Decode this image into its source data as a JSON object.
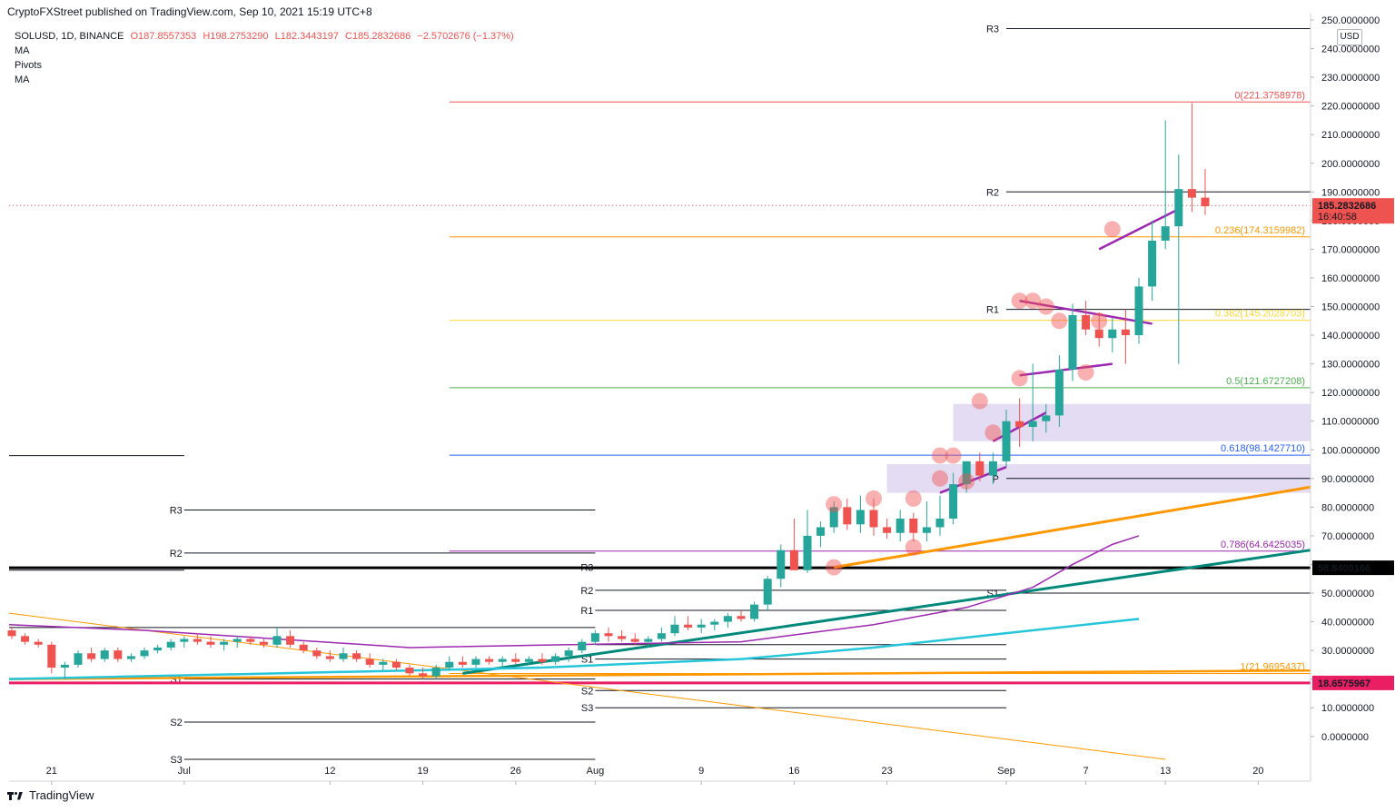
{
  "header": {
    "published": "CryptoFXStreet published on TradingView.com, Sep 10, 2021 15:19 UTC+8"
  },
  "legend": {
    "symbol": "SOLUSD, 1D, BINANCE",
    "open": "O187.8557353",
    "high": "H198.2753290",
    "low": "L182.3443197",
    "close": "C185.2832686",
    "change": "−2.5702676 (−1.37%)",
    "indicators": [
      "MA",
      "Pivots",
      "MA"
    ]
  },
  "currency": "USD",
  "footer": {
    "brand": "TradingView"
  },
  "colors": {
    "up": "#26a69a",
    "down": "#ef5350",
    "orange": "#ff9800",
    "teal": "#00897b",
    "cyan": "#26c6da",
    "purple": "#9c27b0",
    "magenta": "#e91e63",
    "zone": "#d1c4e9"
  },
  "chart_data": {
    "type": "candlestick",
    "symbol": "SOLUSD",
    "interval": "1D",
    "ylim": [
      -8,
      250
    ],
    "y_ticks": [
      0,
      10,
      20,
      30,
      40,
      50,
      60,
      70,
      80,
      90,
      100,
      110,
      120,
      130,
      140,
      150,
      160,
      170,
      180,
      190,
      200,
      210,
      220,
      230,
      240,
      250
    ],
    "y_tick_labels": [
      "0.0000000",
      "10.0000000",
      "20.0000000",
      "30.0000000",
      "40.0000000",
      "50.0000000",
      "60.0000000",
      "70.0000000",
      "80.0000000",
      "90.0000000",
      "100.0000000",
      "110.0000000",
      "120.0000000",
      "130.0000000",
      "140.0000000",
      "150.0000000",
      "160.0000000",
      "170.0000000",
      "180.0000000",
      "190.0000000",
      "200.0000000",
      "210.0000000",
      "220.0000000",
      "230.0000000",
      "240.0000000",
      "250.0000000"
    ],
    "x_labels": [
      {
        "label": "21",
        "day": 3
      },
      {
        "label": "Jul",
        "day": 13
      },
      {
        "label": "12",
        "day": 24
      },
      {
        "label": "19",
        "day": 31
      },
      {
        "label": "26",
        "day": 38
      },
      {
        "label": "Aug",
        "day": 44
      },
      {
        "label": "9",
        "day": 52
      },
      {
        "label": "16",
        "day": 59
      },
      {
        "label": "23",
        "day": 66
      },
      {
        "label": "Sep",
        "day": 75
      },
      {
        "label": "7",
        "day": 81
      },
      {
        "label": "13",
        "day": 87
      },
      {
        "label": "20",
        "day": 94
      }
    ],
    "price_tags": [
      {
        "value": 185.2832686,
        "label": "185.2832686",
        "sub": "16:40:58",
        "color": "#ef5350"
      },
      {
        "value": 58.8400166,
        "label": "58.8400166",
        "color": "#000000"
      },
      {
        "value": 18.6575967,
        "label": "18.6575967",
        "color": "#e91e63"
      }
    ],
    "candles": [
      [
        37,
        38,
        34,
        35
      ],
      [
        35,
        36,
        32,
        33
      ],
      [
        33,
        34,
        31,
        32
      ],
      [
        32,
        33,
        22,
        24
      ],
      [
        24,
        26,
        20,
        25
      ],
      [
        25,
        30,
        24,
        29
      ],
      [
        29,
        31,
        26,
        27
      ],
      [
        27,
        31,
        26,
        30
      ],
      [
        30,
        31,
        26,
        27
      ],
      [
        27,
        29,
        26,
        28
      ],
      [
        28,
        31,
        27,
        30
      ],
      [
        30,
        32,
        29,
        31
      ],
      [
        31,
        34,
        30,
        33
      ],
      [
        33,
        35,
        31,
        34
      ],
      [
        34,
        36,
        32,
        33
      ],
      [
        33,
        35,
        31,
        32
      ],
      [
        32,
        34,
        30,
        33
      ],
      [
        33,
        35,
        31,
        34
      ],
      [
        34,
        35,
        32,
        33
      ],
      [
        33,
        34,
        31,
        32
      ],
      [
        32,
        38,
        31,
        35
      ],
      [
        35,
        37,
        31,
        32
      ],
      [
        32,
        33,
        29,
        30
      ],
      [
        30,
        31,
        27,
        28
      ],
      [
        28,
        30,
        26,
        27
      ],
      [
        27,
        31,
        26,
        29
      ],
      [
        29,
        30,
        26,
        27
      ],
      [
        27,
        29,
        24,
        25
      ],
      [
        25,
        27,
        23,
        26
      ],
      [
        26,
        27,
        23,
        24
      ],
      [
        24,
        25,
        21,
        22
      ],
      [
        22,
        24,
        20,
        21
      ],
      [
        21,
        25,
        20,
        24
      ],
      [
        24,
        28,
        23,
        26
      ],
      [
        26,
        28,
        24,
        25
      ],
      [
        25,
        28,
        24,
        27
      ],
      [
        27,
        28,
        25,
        26
      ],
      [
        26,
        28,
        24,
        27
      ],
      [
        27,
        29,
        25,
        26
      ],
      [
        26,
        28,
        25,
        27
      ],
      [
        27,
        29,
        25,
        26
      ],
      [
        26,
        29,
        25,
        28
      ],
      [
        28,
        31,
        26,
        30
      ],
      [
        30,
        34,
        29,
        33
      ],
      [
        33,
        37,
        32,
        36
      ],
      [
        36,
        38,
        33,
        35
      ],
      [
        35,
        37,
        33,
        34
      ],
      [
        34,
        36,
        32,
        33
      ],
      [
        33,
        35,
        31,
        34
      ],
      [
        34,
        38,
        33,
        36
      ],
      [
        36,
        42,
        35,
        39
      ],
      [
        39,
        42,
        37,
        38
      ],
      [
        38,
        41,
        36,
        39
      ],
      [
        39,
        41,
        37,
        40
      ],
      [
        40,
        43,
        38,
        42
      ],
      [
        42,
        44,
        40,
        41
      ],
      [
        41,
        47,
        40,
        46
      ],
      [
        46,
        56,
        44,
        55
      ],
      [
        55,
        67,
        52,
        65
      ],
      [
        65,
        76,
        60,
        58
      ],
      [
        58,
        79,
        57,
        70
      ],
      [
        70,
        75,
        66,
        73
      ],
      [
        73,
        82,
        71,
        80
      ],
      [
        80,
        83,
        72,
        74
      ],
      [
        74,
        84,
        71,
        79
      ],
      [
        79,
        83,
        70,
        73
      ],
      [
        73,
        76,
        69,
        71
      ],
      [
        71,
        79,
        68,
        76
      ],
      [
        76,
        78,
        68,
        71
      ],
      [
        71,
        82,
        68,
        73
      ],
      [
        73,
        84,
        70,
        76
      ],
      [
        76,
        92,
        74,
        88
      ],
      [
        88,
        96,
        85,
        96
      ],
      [
        96,
        99,
        89,
        91
      ],
      [
        91,
        99,
        88,
        96
      ],
      [
        96,
        114,
        94,
        110
      ],
      [
        110,
        118,
        101,
        108
      ],
      [
        108,
        130,
        103,
        110
      ],
      [
        110,
        116,
        106,
        112
      ],
      [
        112,
        133,
        108,
        128
      ],
      [
        128,
        151,
        124,
        147
      ],
      [
        147,
        152,
        140,
        142
      ],
      [
        142,
        148,
        136,
        139
      ],
      [
        139,
        146,
        134,
        142
      ],
      [
        142,
        149,
        130,
        140
      ],
      [
        140,
        160,
        137,
        157
      ],
      [
        157,
        180,
        152,
        173
      ],
      [
        173,
        215,
        170,
        178
      ],
      [
        178,
        203,
        130,
        191
      ],
      [
        191,
        221,
        183,
        188
      ],
      [
        188,
        198,
        182,
        185
      ]
    ],
    "pivot_levels_right": [
      {
        "label": "R3",
        "value": 247
      },
      {
        "label": "R2",
        "value": 190
      },
      {
        "label": "R1",
        "value": 149
      },
      {
        "label": "P",
        "value": 90
      },
      {
        "label": "S1",
        "value": 50
      }
    ],
    "pivot_levels_mid": [
      {
        "label": "R3",
        "value": 59
      },
      {
        "label": "R2",
        "value": 51
      },
      {
        "label": "R1",
        "value": 44
      },
      {
        "label": "S1",
        "value": 27
      },
      {
        "label": "S2",
        "value": 16
      },
      {
        "label": "S3",
        "value": 10
      }
    ],
    "pivot_levels_left": [
      {
        "label": "R3",
        "value": 79
      },
      {
        "label": "R2",
        "value": 64
      },
      {
        "label": "S1",
        "value": 20
      },
      {
        "label": "S2",
        "value": 5
      },
      {
        "label": "S3",
        "value": -8
      }
    ],
    "fib_levels": [
      {
        "label": "0(221.3758978)",
        "value": 221.3758978,
        "color": "#ef5350"
      },
      {
        "label": "0.236(174.3159982)",
        "value": 174.3159982,
        "color": "#ff9800"
      },
      {
        "label": "0.382(145.2028703)",
        "value": 145.2028703,
        "color": "#fdd835"
      },
      {
        "label": "0.5(121.6727208)",
        "value": 121.6727208,
        "color": "#4caf50"
      },
      {
        "label": "0.618(98.1427710)",
        "value": 98.142771,
        "color": "#2962ff"
      },
      {
        "label": "0.786(64.6425035)",
        "value": 64.6425035,
        "color": "#9c27b0"
      },
      {
        "label": "1(21.9695437)",
        "value": 21.9695437,
        "color": "#ff9800"
      }
    ]
  }
}
